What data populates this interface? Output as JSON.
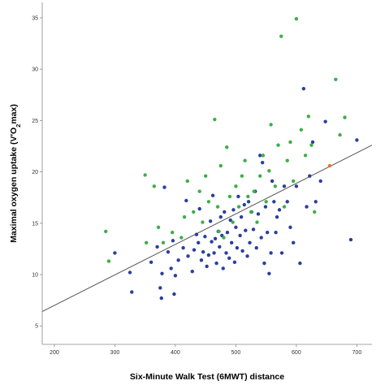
{
  "chart_data": {
    "type": "scatter",
    "title": "",
    "xlabel": "Six-Minute Walk Test (6MWT) distance",
    "ylabel_parts": [
      "Maximal oxygen uptake (V",
      "′",
      "O",
      "2",
      "max)"
    ],
    "xlim": [
      180,
      725
    ],
    "ylim": [
      3.2,
      36.5
    ],
    "xticks": [
      200,
      300,
      400,
      500,
      600,
      700
    ],
    "yticks": [
      5,
      10,
      15,
      20,
      25,
      30,
      35
    ],
    "grid": false,
    "legend": "none",
    "colors": {
      "blue": "#2a3f9d",
      "green": "#3fae49",
      "orange": "#e8742a",
      "line": "#555555"
    },
    "fit_line": {
      "x": [
        180,
        725
      ],
      "y": [
        6.4,
        22.6
      ]
    },
    "series": [
      {
        "color_key": "blue",
        "points": [
          [
            300,
            12.1
          ],
          [
            325,
            10.2
          ],
          [
            328,
            8.3
          ],
          [
            360,
            11.2
          ],
          [
            370,
            12.7
          ],
          [
            375,
            8.7
          ],
          [
            377,
            7.7
          ],
          [
            378,
            10.1
          ],
          [
            382,
            18.5
          ],
          [
            388,
            12.2
          ],
          [
            393,
            10.6
          ],
          [
            396,
            13.3
          ],
          [
            398,
            8.1
          ],
          [
            400,
            9.9
          ],
          [
            405,
            11.4
          ],
          [
            413,
            12.6
          ],
          [
            418,
            17.2
          ],
          [
            421,
            11.8
          ],
          [
            428,
            10.3
          ],
          [
            431,
            12.4
          ],
          [
            435,
            13.9
          ],
          [
            438,
            13.1
          ],
          [
            440,
            16.4
          ],
          [
            443,
            11.4
          ],
          [
            446,
            12.2
          ],
          [
            449,
            13.7
          ],
          [
            452,
            10.8
          ],
          [
            455,
            11.9
          ],
          [
            458,
            15.2
          ],
          [
            460,
            13.2
          ],
          [
            462,
            17.7
          ],
          [
            464,
            12.1
          ],
          [
            466,
            13.5
          ],
          [
            468,
            11.1
          ],
          [
            471,
            14.2
          ],
          [
            473,
            12.7
          ],
          [
            475,
            15.6
          ],
          [
            477,
            13.8
          ],
          [
            479,
            10.6
          ],
          [
            481,
            16.1
          ],
          [
            484,
            12.1
          ],
          [
            486,
            14.1
          ],
          [
            489,
            11.6
          ],
          [
            491,
            15.3
          ],
          [
            493,
            13.1
          ],
          [
            496,
            16.3
          ],
          [
            498,
            11.2
          ],
          [
            500,
            14.6
          ],
          [
            502,
            12.6
          ],
          [
            504,
            17.6
          ],
          [
            507,
            13.8
          ],
          [
            509,
            15.6
          ],
          [
            511,
            12.3
          ],
          [
            514,
            16.8
          ],
          [
            516,
            14.3
          ],
          [
            519,
            11.8
          ],
          [
            521,
            17.1
          ],
          [
            523,
            13.1
          ],
          [
            526,
            16.1
          ],
          [
            529,
            14.4
          ],
          [
            532,
            18.1
          ],
          [
            534,
            12.6
          ],
          [
            537,
            15.9
          ],
          [
            540,
            21.6
          ],
          [
            542,
            13.6
          ],
          [
            544,
            20.9
          ],
          [
            547,
            11.1
          ],
          [
            549,
            16.6
          ],
          [
            552,
            14.1
          ],
          [
            555,
            10.1
          ],
          [
            558,
            12.1
          ],
          [
            560,
            19.1
          ],
          [
            563,
            17.1
          ],
          [
            566,
            14.1
          ],
          [
            568,
            15.6
          ],
          [
            572,
            16.3
          ],
          [
            576,
            12.1
          ],
          [
            580,
            18.6
          ],
          [
            585,
            17.1
          ],
          [
            590,
            14.6
          ],
          [
            595,
            13.1
          ],
          [
            600,
            18.6
          ],
          [
            606,
            11.1
          ],
          [
            612,
            28.1
          ],
          [
            617,
            16.6
          ],
          [
            622,
            19.6
          ],
          [
            627,
            22.9
          ],
          [
            632,
            17.1
          ],
          [
            640,
            19.1
          ],
          [
            648,
            24.9
          ],
          [
            690,
            13.4
          ],
          [
            700,
            23.1
          ]
        ]
      },
      {
        "color_key": "green",
        "points": [
          [
            285,
            14.2
          ],
          [
            290,
            11.3
          ],
          [
            350,
            19.7
          ],
          [
            352,
            13.1
          ],
          [
            365,
            18.6
          ],
          [
            372,
            14.6
          ],
          [
            380,
            13.1
          ],
          [
            395,
            14.1
          ],
          [
            410,
            13.6
          ],
          [
            415,
            15.6
          ],
          [
            420,
            19.1
          ],
          [
            430,
            16.1
          ],
          [
            440,
            18.1
          ],
          [
            445,
            15.1
          ],
          [
            450,
            19.6
          ],
          [
            455,
            17.1
          ],
          [
            465,
            25.1
          ],
          [
            470,
            16.6
          ],
          [
            472,
            14.2
          ],
          [
            475,
            20.6
          ],
          [
            480,
            13.6
          ],
          [
            485,
            22.4
          ],
          [
            490,
            17.6
          ],
          [
            495,
            15.1
          ],
          [
            500,
            18.6
          ],
          [
            505,
            16.6
          ],
          [
            510,
            19.6
          ],
          [
            515,
            21.1
          ],
          [
            520,
            17.6
          ],
          [
            525,
            16.1
          ],
          [
            530,
            18.1
          ],
          [
            535,
            15.1
          ],
          [
            540,
            19.6
          ],
          [
            545,
            21.6
          ],
          [
            550,
            17.1
          ],
          [
            555,
            20.1
          ],
          [
            558,
            24.6
          ],
          [
            565,
            18.6
          ],
          [
            570,
            22.6
          ],
          [
            575,
            33.2
          ],
          [
            580,
            16.6
          ],
          [
            585,
            21.1
          ],
          [
            590,
            22.9
          ],
          [
            595,
            19.1
          ],
          [
            600,
            34.9
          ],
          [
            608,
            24.1
          ],
          [
            615,
            21.6
          ],
          [
            620,
            25.4
          ],
          [
            625,
            22.6
          ],
          [
            630,
            16.1
          ],
          [
            665,
            29.0
          ],
          [
            672,
            23.6
          ],
          [
            680,
            25.3
          ]
        ]
      },
      {
        "color_key": "orange",
        "points": [
          [
            655,
            20.6
          ]
        ]
      }
    ]
  }
}
